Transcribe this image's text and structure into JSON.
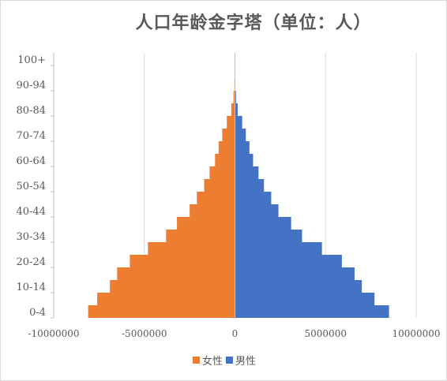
{
  "chart_data": {
    "type": "bar",
    "orientation": "horizontal",
    "stacked": true,
    "title": "人口年龄金字塔（单位：人）",
    "categories": [
      "0-4",
      "5-9",
      "10-14",
      "15-19",
      "20-24",
      "25-29",
      "30-34",
      "35-39",
      "40-44",
      "45-49",
      "50-54",
      "55-59",
      "60-64",
      "65-69",
      "70-74",
      "75-79",
      "80-84",
      "85-89",
      "90-94",
      "95-99",
      "100+"
    ],
    "category_tick_labels": [
      "0-4",
      "10-14",
      "20-24",
      "30-34",
      "40-44",
      "50-54",
      "60-64",
      "70-74",
      "80-84",
      "90-94",
      "100+"
    ],
    "series": [
      {
        "name": "女性",
        "color": "#ed7d31",
        "values": [
          -8100000,
          -7600000,
          -6900000,
          -6500000,
          -5800000,
          -4800000,
          -3800000,
          -3200000,
          -2500000,
          -2100000,
          -1700000,
          -1400000,
          -1100000,
          -900000,
          -700000,
          -450000,
          -200000,
          -80000,
          -30000,
          -10000,
          -2000
        ]
      },
      {
        "name": "男性",
        "color": "#4472c4",
        "values": [
          8500000,
          7700000,
          7000000,
          6600000,
          5900000,
          4800000,
          3700000,
          3100000,
          2400000,
          2000000,
          1600000,
          1300000,
          1000000,
          800000,
          600000,
          400000,
          150000,
          60000,
          20000,
          8000,
          1000
        ]
      }
    ],
    "x_ticks": [
      -10000000,
      -5000000,
      0,
      5000000,
      10000000
    ],
    "x_tick_labels": [
      "-10000000",
      "-5000000",
      "0",
      "5000000",
      "10000000"
    ],
    "xlim": [
      -10000000,
      10000000
    ],
    "grid": "vertical",
    "legend_position": "bottom"
  }
}
